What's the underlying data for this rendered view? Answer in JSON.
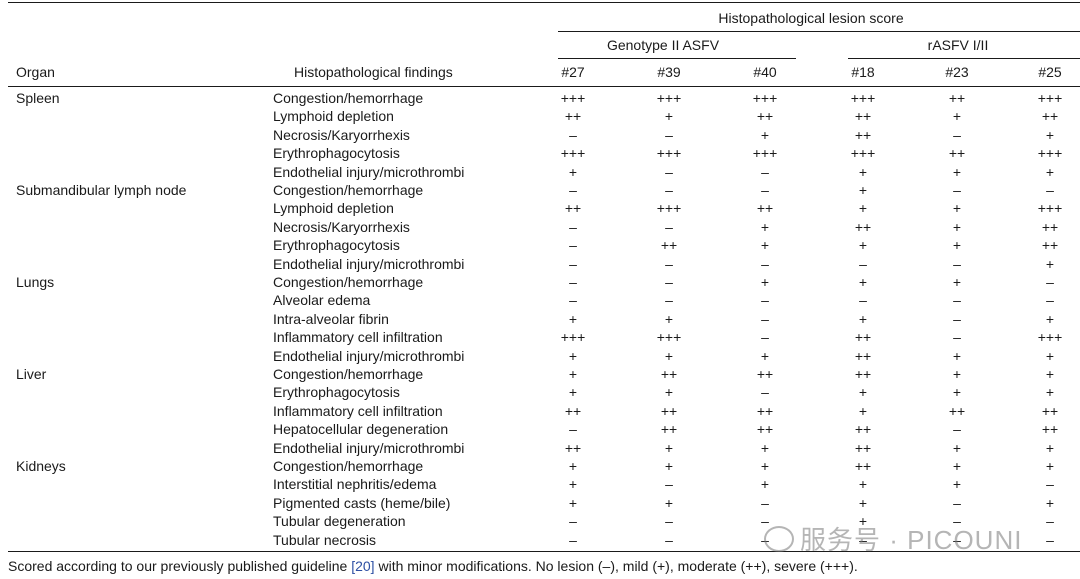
{
  "header": {
    "span_title": "Histopathological lesion score",
    "group1": "Genotype II ASFV",
    "group2": "rASFV I/II",
    "col_organ": "Organ",
    "col_findings": "Histopathological findings",
    "cols": [
      "#27",
      "#39",
      "#40",
      "#18",
      "#23",
      "#25"
    ]
  },
  "rows": [
    {
      "organ": "Spleen",
      "finding": "Congestion/hemorrhage",
      "s": [
        "+++",
        "+++",
        "+++",
        "+++",
        "++",
        "+++"
      ]
    },
    {
      "organ": "",
      "finding": "Lymphoid depletion",
      "s": [
        "++",
        "+",
        "++",
        "++",
        "+",
        "++"
      ]
    },
    {
      "organ": "",
      "finding": "Necrosis/Karyorrhexis",
      "s": [
        "–",
        "–",
        "+",
        "++",
        "–",
        "+"
      ]
    },
    {
      "organ": "",
      "finding": "Erythrophagocytosis",
      "s": [
        "+++",
        "+++",
        "+++",
        "+++",
        "++",
        "+++"
      ]
    },
    {
      "organ": "",
      "finding": "Endothelial injury/microthrombi",
      "s": [
        "+",
        "–",
        "–",
        "+",
        "+",
        "+"
      ]
    },
    {
      "organ": "Submandibular lymph node",
      "finding": "Congestion/hemorrhage",
      "s": [
        "–",
        "–",
        "–",
        "+",
        "–",
        "–"
      ]
    },
    {
      "organ": "",
      "finding": "Lymphoid depletion",
      "s": [
        "++",
        "+++",
        "++",
        "+",
        "+",
        "+++"
      ]
    },
    {
      "organ": "",
      "finding": "Necrosis/Karyorrhexis",
      "s": [
        "–",
        "–",
        "+",
        "++",
        "+",
        "++"
      ]
    },
    {
      "organ": "",
      "finding": "Erythrophagocytosis",
      "s": [
        "–",
        "++",
        "+",
        "+",
        "+",
        "++"
      ]
    },
    {
      "organ": "",
      "finding": "Endothelial injury/microthrombi",
      "s": [
        "–",
        "–",
        "–",
        "–",
        "–",
        "+"
      ]
    },
    {
      "organ": "Lungs",
      "finding": "Congestion/hemorrhage",
      "s": [
        "–",
        "–",
        "+",
        "+",
        "+",
        "–"
      ]
    },
    {
      "organ": "",
      "finding": "Alveolar edema",
      "s": [
        "–",
        "–",
        "–",
        "–",
        "–",
        "–"
      ]
    },
    {
      "organ": "",
      "finding": "Intra-alveolar fibrin",
      "s": [
        "+",
        "+",
        "–",
        "+",
        "–",
        "+"
      ]
    },
    {
      "organ": "",
      "finding": "Inflammatory cell infiltration",
      "s": [
        "+++",
        "+++",
        "–",
        "++",
        "–",
        "+++"
      ]
    },
    {
      "organ": "",
      "finding": "Endothelial injury/microthrombi",
      "s": [
        "+",
        "+",
        "+",
        "++",
        "+",
        "+"
      ]
    },
    {
      "organ": "Liver",
      "finding": "Congestion/hemorrhage",
      "s": [
        "+",
        "++",
        "++",
        "++",
        "+",
        "+"
      ]
    },
    {
      "organ": "",
      "finding": "Erythrophagocytosis",
      "s": [
        "+",
        "+",
        "–",
        "+",
        "+",
        "+"
      ]
    },
    {
      "organ": "",
      "finding": "Inflammatory cell infiltration",
      "s": [
        "++",
        "++",
        "++",
        "+",
        "++",
        "++"
      ]
    },
    {
      "organ": "",
      "finding": "Hepatocellular degeneration",
      "s": [
        "–",
        "++",
        "++",
        "++",
        "–",
        "++"
      ]
    },
    {
      "organ": "",
      "finding": "Endothelial injury/microthrombi",
      "s": [
        "++",
        "+",
        "+",
        "++",
        "+",
        "+"
      ]
    },
    {
      "organ": "Kidneys",
      "finding": "Congestion/hemorrhage",
      "s": [
        "+",
        "+",
        "+",
        "++",
        "+",
        "+"
      ]
    },
    {
      "organ": "",
      "finding": "Interstitial nephritis/edema",
      "s": [
        "+",
        "–",
        "+",
        "+",
        "+",
        "–"
      ]
    },
    {
      "organ": "",
      "finding": "Pigmented casts (heme/bile)",
      "s": [
        "+",
        "+",
        "–",
        "+",
        "–",
        "+"
      ]
    },
    {
      "organ": "",
      "finding": "Tubular degeneration",
      "s": [
        "–",
        "–",
        "–",
        "+",
        "–",
        "–"
      ]
    },
    {
      "organ": "",
      "finding": "Tubular necrosis",
      "s": [
        "–",
        "–",
        "–",
        "–",
        "–",
        "–"
      ]
    }
  ],
  "footnote": {
    "before": "Scored according to our previously published guideline ",
    "ref": "[20]",
    "after": " with minor modifications. No lesion (–), mild (+), moderate (++), severe (+++)."
  },
  "watermark": "服务号 · PICOUNI"
}
